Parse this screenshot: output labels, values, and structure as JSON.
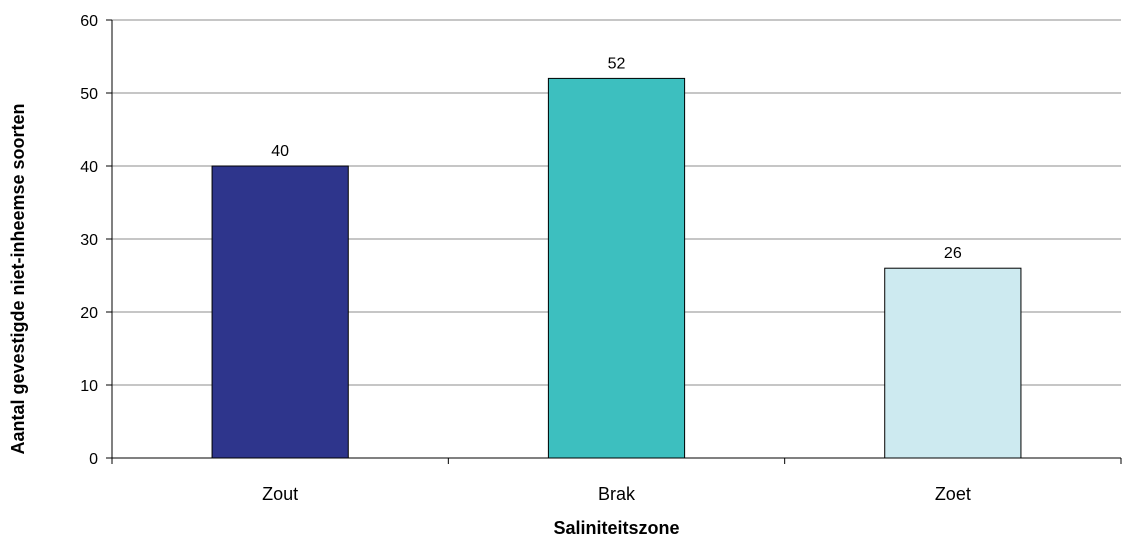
{
  "chart_data": {
    "type": "bar",
    "title": "",
    "xlabel": "Saliniteitszone",
    "ylabel": "Aantal gevestigde niet-inheemse soorten",
    "categories": [
      "Zout",
      "Brak",
      "Zoet"
    ],
    "values": [
      40,
      52,
      26
    ],
    "data_labels": [
      "40",
      "52",
      "26"
    ],
    "ylim": [
      0,
      60
    ],
    "yticks": [
      0,
      10,
      20,
      30,
      40,
      50,
      60
    ],
    "grid": true,
    "legend": "none",
    "bar_colors": [
      "#2e358c",
      "#3dbfbf",
      "#cdeaf0"
    ]
  }
}
